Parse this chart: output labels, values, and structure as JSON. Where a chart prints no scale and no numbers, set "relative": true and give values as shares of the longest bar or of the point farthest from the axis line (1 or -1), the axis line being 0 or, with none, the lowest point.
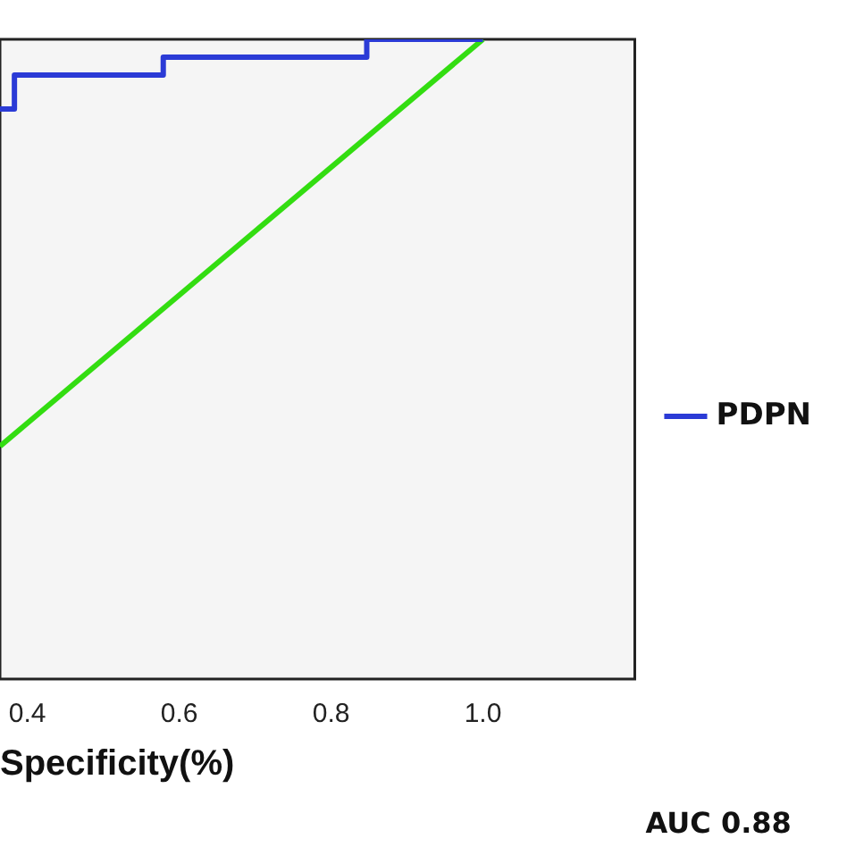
{
  "chart_data": {
    "type": "step",
    "xlabel": "Specificity(%)",
    "xlim": [
      0.364,
      1.2
    ],
    "xticks": [
      0.4,
      0.6,
      0.8,
      {
        "value": 1,
        "label": "1.0"
      }
    ],
    "relative": true,
    "tick_labels": "x",
    "legend": "right",
    "grid": false,
    "annotations": [
      "AUC 0.88"
    ],
    "series": [
      {
        "name": "PDPN",
        "color": "#2b3bd6",
        "x": [
          0.364,
          0.383,
          0.579,
          0.847,
          1.0
        ],
        "values": [
          0.891,
          0.944,
          0.972,
          1.0,
          1.0
        ]
      },
      {
        "type": "line",
        "color": "#33dd11",
        "x": [
          0.364,
          1.0
        ],
        "values": [
          0.364,
          1.0
        ]
      }
    ]
  }
}
